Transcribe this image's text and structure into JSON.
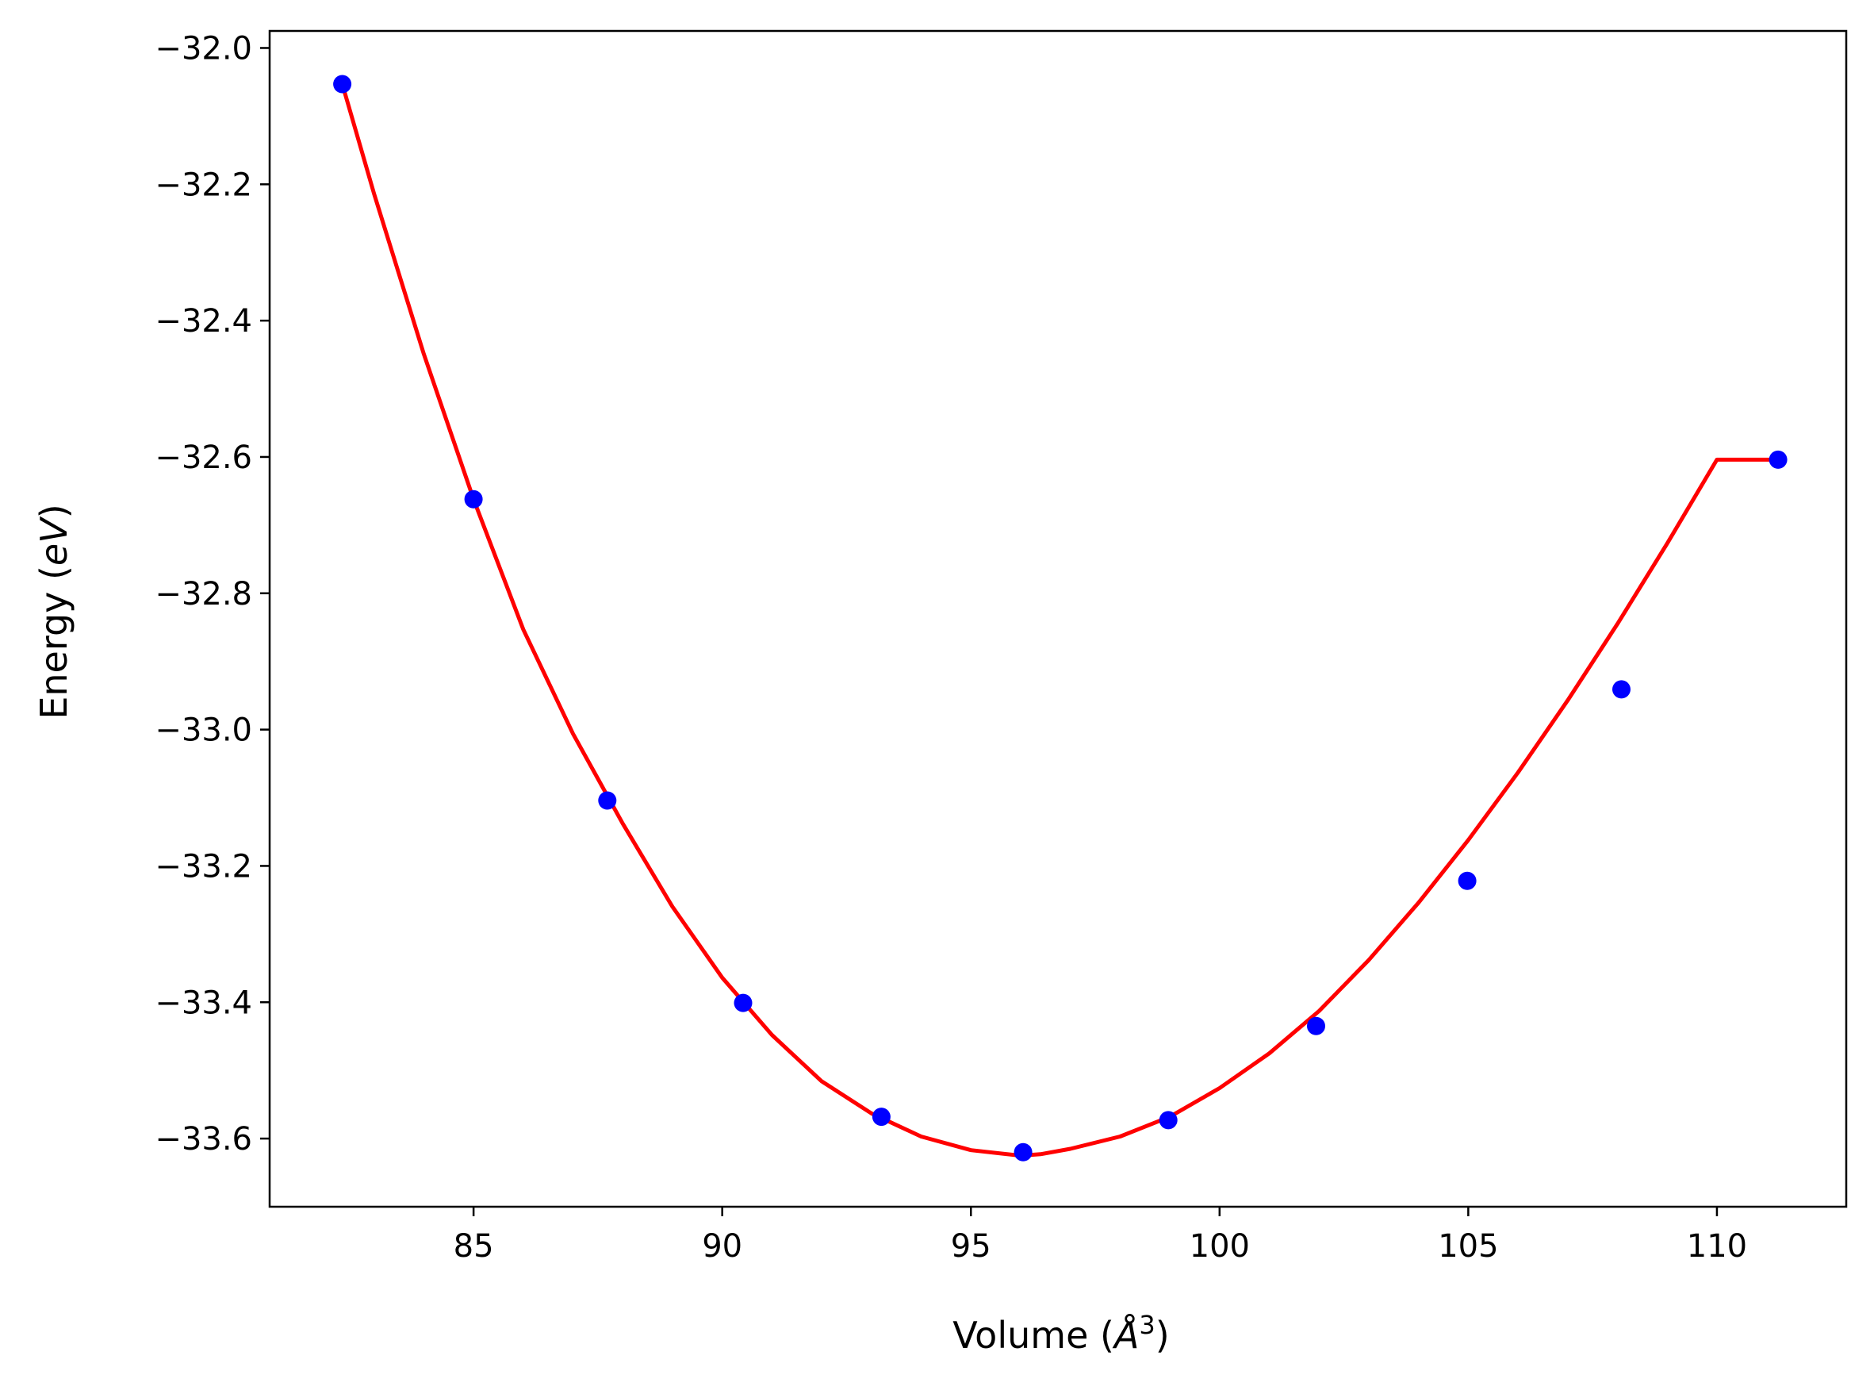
{
  "chart_data": {
    "type": "scatter",
    "title": "",
    "xlabel_prefix": "Volume (",
    "xlabel_unit": "Å",
    "xlabel_exp": "3",
    "xlabel_suffix": ")",
    "ylabel_prefix": "Energy (",
    "ylabel_unit": "eV",
    "ylabel_suffix": ")",
    "xlim": [
      80.9,
      112.6
    ],
    "ylim": [
      -33.7,
      -31.975
    ],
    "xticks": [
      85,
      90,
      95,
      100,
      105,
      110
    ],
    "yticks": [
      -32.0,
      -32.2,
      -32.4,
      -32.6,
      -32.8,
      -33.0,
      -33.2,
      -33.4,
      -33.6
    ],
    "xtick_labels": [
      "85",
      "90",
      "95",
      "100",
      "105",
      "110"
    ],
    "ytick_labels": [
      "−32.0",
      "−32.2",
      "−32.4",
      "−32.6",
      "−32.8",
      "−33.0",
      "−33.2",
      "−33.4",
      "−33.6"
    ],
    "grid": false,
    "series": [
      {
        "kind": "points",
        "color": "#0000ff",
        "x": [
          82.36,
          85.0,
          87.69,
          90.42,
          93.2,
          96.05,
          98.97,
          101.94,
          104.98,
          108.08,
          111.23
        ],
        "y": [
          -32.053,
          -32.662,
          -33.104,
          -33.401,
          -33.568,
          -33.62,
          -33.573,
          -33.435,
          -33.222,
          -32.941,
          -32.604
        ]
      },
      {
        "kind": "fit",
        "color": "#ff0000",
        "x": [
          82.36,
          83.0,
          84.0,
          85.0,
          86.0,
          87.0,
          88.0,
          89.0,
          90.0,
          91.0,
          92.0,
          93.0,
          94.0,
          95.0,
          96.0,
          96.4,
          97.0,
          98.0,
          99.0,
          100.0,
          101.0,
          102.0,
          103.0,
          104.0,
          105.0,
          106.0,
          107.0,
          108.0,
          109.0,
          110.0,
          111.23
        ],
        "y": [
          -32.053,
          -32.214,
          -32.449,
          -32.662,
          -32.853,
          -33.006,
          -33.138,
          -33.26,
          -33.364,
          -33.448,
          -33.516,
          -33.563,
          -33.597,
          -33.617,
          -33.625,
          -33.623,
          -33.615,
          -33.597,
          -33.568,
          -33.526,
          -33.475,
          -33.413,
          -33.338,
          -33.254,
          -33.162,
          -33.063,
          -32.957,
          -32.845,
          -32.727,
          -32.604,
          -32.604
        ]
      }
    ]
  }
}
